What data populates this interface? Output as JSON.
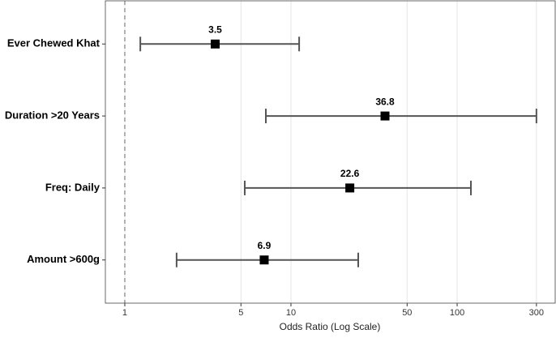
{
  "chart_data": {
    "type": "forest",
    "categories": [
      "Ever Chewed Khat",
      "Duration >20 Years",
      "Freq: Daily",
      "Amount >600g"
    ],
    "values": [
      3.5,
      36.8,
      22.6,
      6.9
    ],
    "lower": [
      1.24,
      7.06,
      5.27,
      2.05
    ],
    "upper": [
      11.2,
      300,
      121,
      25.4
    ],
    "color": "#000000",
    "whisker_color": "#555555",
    "xlabel": "Odds Ratio (Log Scale)",
    "xscale": "log",
    "xlim": [
      0.764,
      389
    ],
    "xticks": [
      1,
      5,
      10,
      50,
      100,
      300
    ],
    "ref_line": 1,
    "grid": true
  }
}
